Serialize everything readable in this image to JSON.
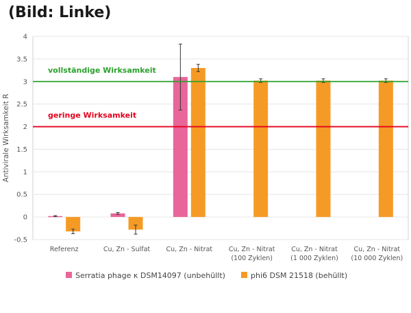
{
  "caption": "(Bild: Linke)",
  "chart_data": {
    "type": "bar",
    "ylabel": "Antivirale Wirksamkeit R",
    "ylim": [
      -0.5,
      4
    ],
    "yticks": [
      -0.5,
      0,
      0.5,
      1,
      1.5,
      2,
      2.5,
      3,
      3.5,
      4
    ],
    "ytick_labels": [
      "-0.5",
      "0",
      "0.5",
      "1",
      "1.5",
      "2",
      "2.5",
      "3",
      "3.5",
      "4"
    ],
    "categories": [
      [
        "Referenz"
      ],
      [
        "Cu, Zn - Sulfat"
      ],
      [
        "Cu, Zn - Nitrat"
      ],
      [
        "Cu, Zn - Nitrat",
        "(100 Zyklen)"
      ],
      [
        "Cu, Zn - Nitrat",
        "(1 000 Zyklen)"
      ],
      [
        "Cu, Zn - Nitrat",
        "(10 000 Zyklen)"
      ]
    ],
    "series": [
      {
        "name": "Serratia phage κ DSM14097 (unbehüllt)",
        "color": "#e8669a",
        "values": [
          0.02,
          0.08,
          3.1,
          null,
          null,
          null
        ],
        "errors": [
          0.01,
          0.02,
          0.73,
          null,
          null,
          null
        ]
      },
      {
        "name": "phi6 DSM 21518 (behüllt)",
        "color": "#f59b25",
        "values": [
          -0.32,
          -0.28,
          3.3,
          3.02,
          3.02,
          3.02
        ],
        "errors": [
          0.05,
          0.1,
          0.08,
          0.04,
          0.04,
          0.04
        ]
      }
    ],
    "reference_lines": [
      {
        "y": 3,
        "label": "vollständige Wirksamkeit",
        "color": "#2ca02c"
      },
      {
        "y": 2,
        "label": "geringe Wirksamkeit",
        "color": "#e3001b"
      }
    ],
    "legend_position": "bottom"
  }
}
